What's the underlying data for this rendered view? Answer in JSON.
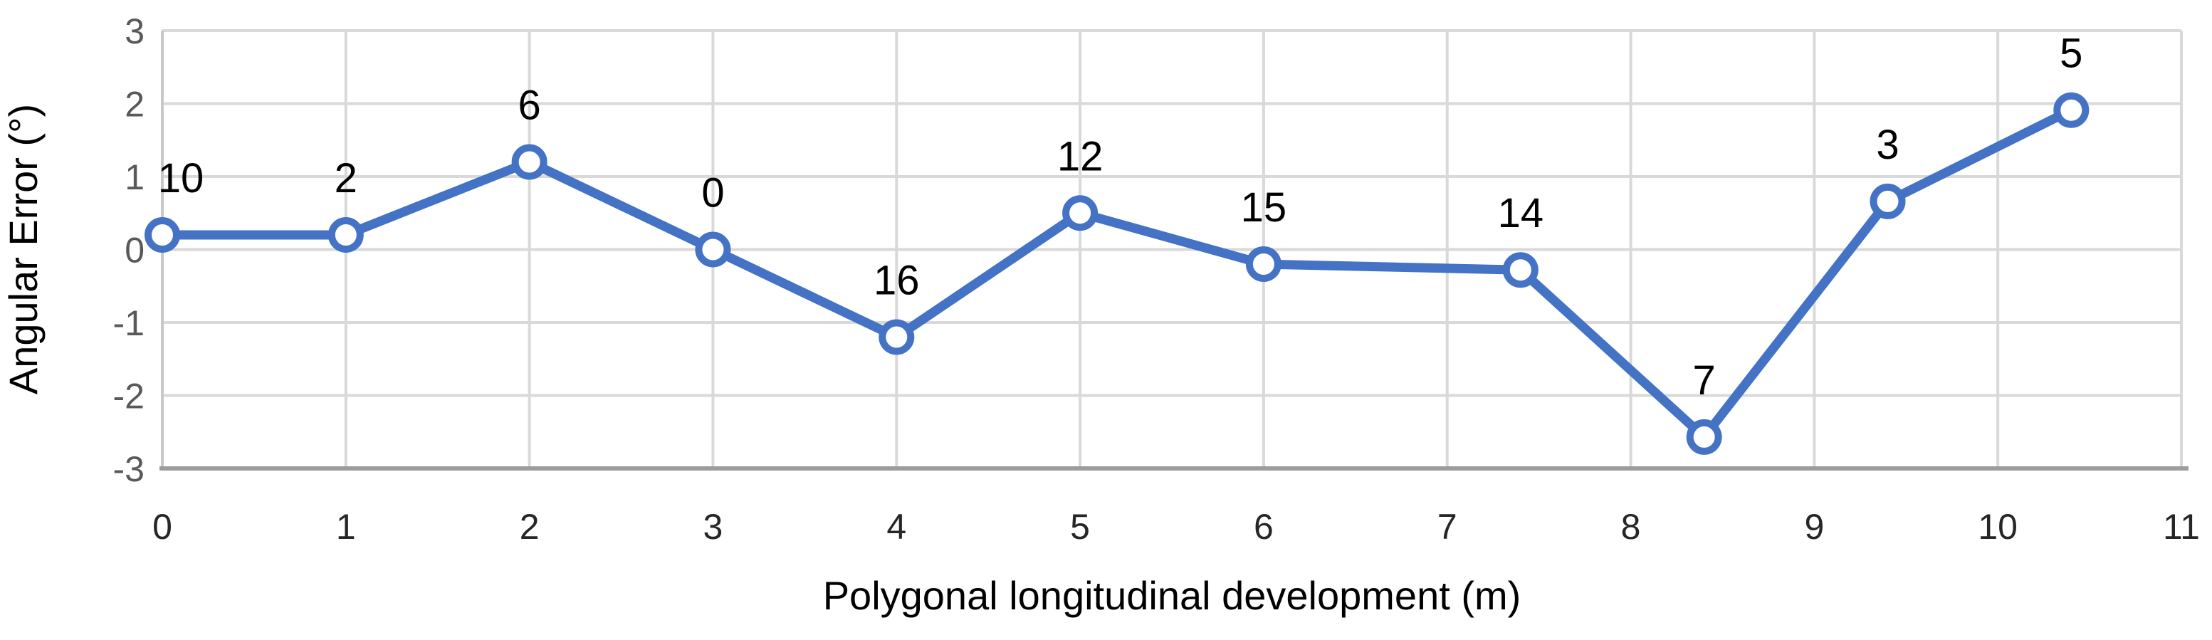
{
  "chart_data": {
    "type": "line",
    "title": "",
    "xlabel": "Polygonal longitudinal development (m)",
    "ylabel": "Angular Error (°)",
    "xlim": [
      0,
      11
    ],
    "ylim": [
      -3,
      3
    ],
    "grid": true,
    "legend_position": "none",
    "x_ticks": [
      "0",
      "1",
      "2",
      "3",
      "4",
      "5",
      "6",
      "7",
      "8",
      "9",
      "10",
      "11"
    ],
    "y_ticks": [
      "3",
      "2",
      "1",
      "0",
      "-1",
      "-2",
      "-3"
    ],
    "series": [
      {
        "name": "Angular Error",
        "points": [
          {
            "x": 0,
            "y": 0.2,
            "label": "10",
            "label_dx": 26
          },
          {
            "x": 1,
            "y": 0.2,
            "label": "2"
          },
          {
            "x": 2,
            "y": 1.2,
            "label": "6"
          },
          {
            "x": 3,
            "y": 0.0,
            "label": "0"
          },
          {
            "x": 4,
            "y": -1.2,
            "label": "16"
          },
          {
            "x": 5,
            "y": 0.5,
            "label": "12"
          },
          {
            "x": 6,
            "y": -0.2,
            "label": "15"
          },
          {
            "x": 7.4,
            "y": -0.28,
            "label": "14"
          },
          {
            "x": 8.4,
            "y": -2.57,
            "label": "7"
          },
          {
            "x": 9.4,
            "y": 0.66,
            "label": "3"
          },
          {
            "x": 10.4,
            "y": 1.91,
            "label": "5"
          }
        ]
      }
    ],
    "colors": {
      "line": "#4472C4",
      "marker_fill": "#FFFFFF",
      "gridline": "#D9D9D9",
      "left_axis_line": "#C9C9C9",
      "bottom_axis_line": "#9C9C9C",
      "x_tick_color": "#262626",
      "y_tick_color": "#595959",
      "data_label_color": "#000000",
      "axis_title_color": "#000000"
    }
  }
}
